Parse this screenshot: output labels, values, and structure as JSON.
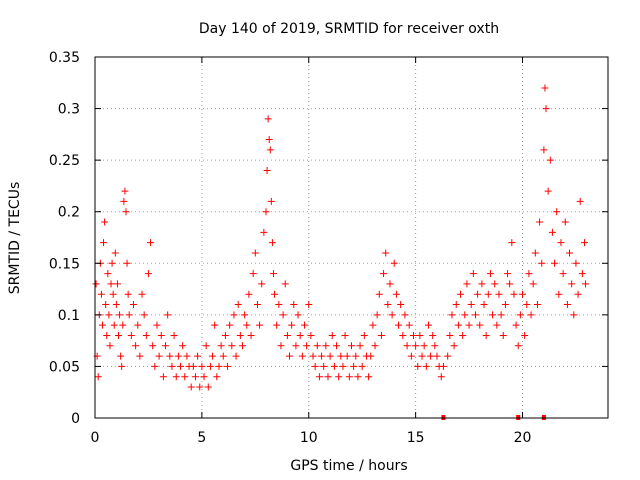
{
  "chart_data": {
    "type": "scatter",
    "title": "Day 140 of 2019, SRMTID for receiver oxth",
    "xlabel": "GPS time / hours",
    "ylabel": "SRMTID / TECUs",
    "xlim": [
      0,
      24
    ],
    "ylim": [
      0,
      0.35
    ],
    "xticks": [
      0,
      5,
      10,
      15,
      20
    ],
    "xtick_labels": [
      "0",
      "5",
      "10",
      "15",
      "20"
    ],
    "yticks": [
      0,
      0.05,
      0.1,
      0.15,
      0.2,
      0.25,
      0.3,
      0.35
    ],
    "ytick_labels": [
      "0",
      "0.05",
      "0.1",
      "0.15",
      "0.2",
      "0.25",
      "0.3",
      "0.35"
    ],
    "grid": true,
    "marker": "+",
    "color": "#ff0000",
    "series": [
      {
        "name": "SRMTID",
        "points": [
          [
            0.05,
            0.13
          ],
          [
            0.1,
            0.06
          ],
          [
            0.15,
            0.04
          ],
          [
            0.2,
            0.1
          ],
          [
            0.25,
            0.15
          ],
          [
            0.3,
            0.12
          ],
          [
            0.35,
            0.09
          ],
          [
            0.4,
            0.17
          ],
          [
            0.45,
            0.19
          ],
          [
            0.5,
            0.11
          ],
          [
            0.55,
            0.08
          ],
          [
            0.6,
            0.14
          ],
          [
            0.65,
            0.1
          ],
          [
            0.7,
            0.07
          ],
          [
            0.75,
            0.13
          ],
          [
            0.8,
            0.15
          ],
          [
            0.85,
            0.12
          ],
          [
            0.9,
            0.09
          ],
          [
            0.95,
            0.16
          ],
          [
            1.0,
            0.11
          ],
          [
            1.05,
            0.13
          ],
          [
            1.1,
            0.08
          ],
          [
            1.15,
            0.1
          ],
          [
            1.2,
            0.06
          ],
          [
            1.25,
            0.05
          ],
          [
            1.3,
            0.09
          ],
          [
            1.35,
            0.21
          ],
          [
            1.4,
            0.22
          ],
          [
            1.45,
            0.2
          ],
          [
            1.5,
            0.15
          ],
          [
            1.55,
            0.12
          ],
          [
            1.6,
            0.1
          ],
          [
            1.7,
            0.08
          ],
          [
            1.8,
            0.11
          ],
          [
            1.9,
            0.07
          ],
          [
            2.0,
            0.09
          ],
          [
            2.1,
            0.06
          ],
          [
            2.2,
            0.12
          ],
          [
            2.3,
            0.1
          ],
          [
            2.4,
            0.08
          ],
          [
            2.5,
            0.14
          ],
          [
            2.6,
            0.17
          ],
          [
            2.7,
            0.07
          ],
          [
            2.8,
            0.05
          ],
          [
            2.9,
            0.09
          ],
          [
            3.0,
            0.06
          ],
          [
            3.1,
            0.08
          ],
          [
            3.2,
            0.04
          ],
          [
            3.3,
            0.07
          ],
          [
            3.4,
            0.1
          ],
          [
            3.5,
            0.06
          ],
          [
            3.6,
            0.05
          ],
          [
            3.7,
            0.08
          ],
          [
            3.8,
            0.04
          ],
          [
            3.9,
            0.06
          ],
          [
            4.0,
            0.05
          ],
          [
            4.1,
            0.07
          ],
          [
            4.2,
            0.04
          ],
          [
            4.3,
            0.06
          ],
          [
            4.4,
            0.05
          ],
          [
            4.5,
            0.03
          ],
          [
            4.6,
            0.05
          ],
          [
            4.7,
            0.04
          ],
          [
            4.8,
            0.06
          ],
          [
            4.9,
            0.03
          ],
          [
            5.0,
            0.05
          ],
          [
            5.1,
            0.04
          ],
          [
            5.2,
            0.07
          ],
          [
            5.3,
            0.03
          ],
          [
            5.4,
            0.05
          ],
          [
            5.5,
            0.06
          ],
          [
            5.6,
            0.09
          ],
          [
            5.7,
            0.04
          ],
          [
            5.8,
            0.05
          ],
          [
            5.9,
            0.07
          ],
          [
            6.0,
            0.06
          ],
          [
            6.1,
            0.08
          ],
          [
            6.2,
            0.05
          ],
          [
            6.3,
            0.09
          ],
          [
            6.4,
            0.07
          ],
          [
            6.5,
            0.1
          ],
          [
            6.6,
            0.06
          ],
          [
            6.7,
            0.11
          ],
          [
            6.8,
            0.08
          ],
          [
            6.9,
            0.07
          ],
          [
            7.0,
            0.1
          ],
          [
            7.1,
            0.09
          ],
          [
            7.2,
            0.12
          ],
          [
            7.3,
            0.08
          ],
          [
            7.4,
            0.14
          ],
          [
            7.5,
            0.16
          ],
          [
            7.6,
            0.11
          ],
          [
            7.7,
            0.09
          ],
          [
            7.8,
            0.13
          ],
          [
            7.9,
            0.18
          ],
          [
            8.0,
            0.2
          ],
          [
            8.05,
            0.24
          ],
          [
            8.1,
            0.29
          ],
          [
            8.15,
            0.27
          ],
          [
            8.2,
            0.26
          ],
          [
            8.25,
            0.21
          ],
          [
            8.3,
            0.17
          ],
          [
            8.35,
            0.14
          ],
          [
            8.4,
            0.12
          ],
          [
            8.5,
            0.09
          ],
          [
            8.6,
            0.11
          ],
          [
            8.7,
            0.07
          ],
          [
            8.8,
            0.1
          ],
          [
            8.9,
            0.13
          ],
          [
            9.0,
            0.08
          ],
          [
            9.1,
            0.06
          ],
          [
            9.2,
            0.09
          ],
          [
            9.3,
            0.11
          ],
          [
            9.4,
            0.07
          ],
          [
            9.5,
            0.1
          ],
          [
            9.6,
            0.08
          ],
          [
            9.7,
            0.06
          ],
          [
            9.8,
            0.09
          ],
          [
            9.9,
            0.07
          ],
          [
            10.0,
            0.11
          ],
          [
            10.1,
            0.08
          ],
          [
            10.2,
            0.06
          ],
          [
            10.3,
            0.05
          ],
          [
            10.4,
            0.07
          ],
          [
            10.5,
            0.04
          ],
          [
            10.6,
            0.06
          ],
          [
            10.7,
            0.05
          ],
          [
            10.8,
            0.07
          ],
          [
            10.9,
            0.04
          ],
          [
            11.0,
            0.06
          ],
          [
            11.1,
            0.08
          ],
          [
            11.2,
            0.05
          ],
          [
            11.3,
            0.07
          ],
          [
            11.4,
            0.04
          ],
          [
            11.5,
            0.06
          ],
          [
            11.6,
            0.05
          ],
          [
            11.7,
            0.08
          ],
          [
            11.8,
            0.06
          ],
          [
            11.9,
            0.04
          ],
          [
            12.0,
            0.07
          ],
          [
            12.1,
            0.05
          ],
          [
            12.2,
            0.06
          ],
          [
            12.3,
            0.04
          ],
          [
            12.4,
            0.07
          ],
          [
            12.5,
            0.05
          ],
          [
            12.6,
            0.08
          ],
          [
            12.7,
            0.06
          ],
          [
            12.8,
            0.04
          ],
          [
            12.9,
            0.06
          ],
          [
            13.0,
            0.09
          ],
          [
            13.1,
            0.07
          ],
          [
            13.2,
            0.1
          ],
          [
            13.3,
            0.12
          ],
          [
            13.4,
            0.08
          ],
          [
            13.5,
            0.14
          ],
          [
            13.6,
            0.16
          ],
          [
            13.7,
            0.11
          ],
          [
            13.8,
            0.13
          ],
          [
            13.9,
            0.1
          ],
          [
            14.0,
            0.15
          ],
          [
            14.1,
            0.12
          ],
          [
            14.2,
            0.09
          ],
          [
            14.3,
            0.11
          ],
          [
            14.4,
            0.08
          ],
          [
            14.5,
            0.1
          ],
          [
            14.6,
            0.07
          ],
          [
            14.7,
            0.09
          ],
          [
            14.8,
            0.06
          ],
          [
            14.9,
            0.08
          ],
          [
            15.0,
            0.07
          ],
          [
            15.1,
            0.05
          ],
          [
            15.2,
            0.08
          ],
          [
            15.3,
            0.06
          ],
          [
            15.4,
            0.07
          ],
          [
            15.5,
            0.05
          ],
          [
            15.6,
            0.09
          ],
          [
            15.7,
            0.06
          ],
          [
            15.8,
            0.08
          ],
          [
            15.9,
            0.07
          ],
          [
            16.0,
            0.06
          ],
          [
            16.1,
            0.05
          ],
          [
            16.2,
            0.04
          ],
          [
            16.3,
            0.05
          ],
          [
            16.5,
            0.06
          ],
          [
            16.6,
            0.08
          ],
          [
            16.7,
            0.1
          ],
          [
            16.8,
            0.07
          ],
          [
            16.9,
            0.11
          ],
          [
            17.0,
            0.09
          ],
          [
            17.1,
            0.12
          ],
          [
            17.2,
            0.08
          ],
          [
            17.3,
            0.1
          ],
          [
            17.4,
            0.13
          ],
          [
            17.5,
            0.09
          ],
          [
            17.6,
            0.11
          ],
          [
            17.7,
            0.14
          ],
          [
            17.8,
            0.1
          ],
          [
            17.9,
            0.12
          ],
          [
            18.0,
            0.09
          ],
          [
            18.1,
            0.13
          ],
          [
            18.2,
            0.11
          ],
          [
            18.3,
            0.08
          ],
          [
            18.4,
            0.12
          ],
          [
            18.5,
            0.14
          ],
          [
            18.6,
            0.1
          ],
          [
            18.7,
            0.13
          ],
          [
            18.8,
            0.09
          ],
          [
            18.9,
            0.12
          ],
          [
            19.0,
            0.1
          ],
          [
            19.1,
            0.08
          ],
          [
            19.2,
            0.11
          ],
          [
            19.3,
            0.14
          ],
          [
            19.4,
            0.13
          ],
          [
            19.5,
            0.17
          ],
          [
            19.6,
            0.12
          ],
          [
            19.7,
            0.09
          ],
          [
            19.8,
            0.07
          ],
          [
            19.9,
            0.1
          ],
          [
            20.0,
            0.12
          ],
          [
            20.1,
            0.08
          ],
          [
            20.2,
            0.11
          ],
          [
            20.3,
            0.14
          ],
          [
            20.4,
            0.1
          ],
          [
            20.5,
            0.13
          ],
          [
            20.6,
            0.16
          ],
          [
            20.7,
            0.11
          ],
          [
            20.8,
            0.19
          ],
          [
            20.9,
            0.15
          ],
          [
            21.0,
            0.26
          ],
          [
            21.05,
            0.32
          ],
          [
            21.1,
            0.3
          ],
          [
            21.2,
            0.22
          ],
          [
            21.3,
            0.25
          ],
          [
            21.4,
            0.18
          ],
          [
            21.5,
            0.15
          ],
          [
            21.6,
            0.2
          ],
          [
            21.7,
            0.12
          ],
          [
            21.8,
            0.17
          ],
          [
            21.9,
            0.14
          ],
          [
            22.0,
            0.19
          ],
          [
            22.1,
            0.11
          ],
          [
            22.2,
            0.16
          ],
          [
            22.3,
            0.13
          ],
          [
            22.4,
            0.1
          ],
          [
            22.5,
            0.15
          ],
          [
            22.6,
            0.12
          ],
          [
            22.7,
            0.21
          ],
          [
            22.8,
            0.14
          ],
          [
            22.9,
            0.17
          ],
          [
            22.95,
            0.13
          ]
        ]
      }
    ],
    "markers_at_zero": [
      16.3,
      19.8,
      21.0
    ]
  }
}
